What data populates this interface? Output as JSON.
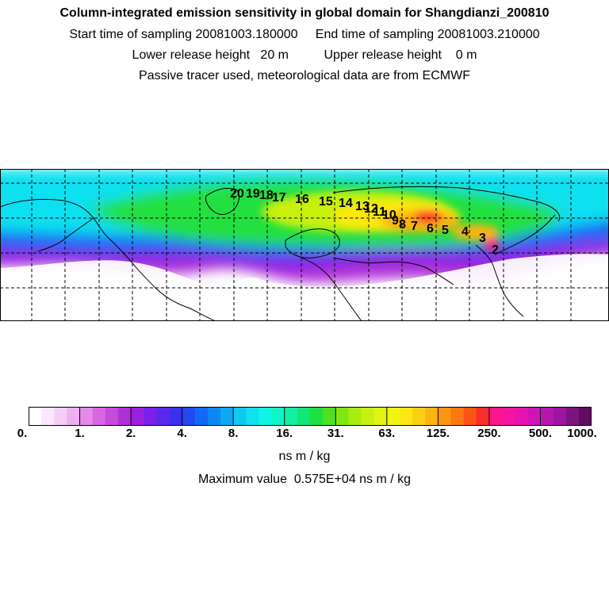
{
  "header": {
    "title": "Column-integrated emission sensitivity in global domain for Shangdianzi_200810",
    "line2": "Start time of sampling 20081003.180000     End time of sampling 20081003.210000",
    "line3": "Lower release height   20 m          Upper release height    0 m",
    "line4": "Passive tracer used, meteorological data are from ECMWF"
  },
  "colorbar": {
    "tick_labels": [
      "0.",
      "1.",
      "2.",
      "4.",
      "8.",
      "16.",
      "31.",
      "63.",
      "125.",
      "250.",
      "500.",
      "1000."
    ],
    "units": "ns m / kg",
    "colors": [
      "#ffffff",
      "#fbe6fb",
      "#f5cdf5",
      "#eeb0f0",
      "#e48ae8",
      "#d865e2",
      "#c84ad8",
      "#b030d8",
      "#9a20e0",
      "#7a20e8",
      "#5a28ec",
      "#3c30f0",
      "#2448f4",
      "#1468f4",
      "#0c88f4",
      "#0ca8f4",
      "#10c8f0",
      "#10e0f0",
      "#10f4e8",
      "#10f4c8",
      "#10f0a0",
      "#10e878",
      "#20e040",
      "#50e020",
      "#80e810",
      "#a8ec10",
      "#c8f010",
      "#e0f410",
      "#f0f410",
      "#fce810",
      "#fcd010",
      "#fcb410",
      "#fc9410",
      "#fc7810",
      "#fc5414",
      "#fc2c2c",
      "#fc1488",
      "#f414a0",
      "#e414b0",
      "#d014b8",
      "#b814b0",
      "#9c14a0",
      "#7c1480",
      "#600c60"
    ]
  },
  "max_value": "Maximum value  0.575E+04 ns m / kg",
  "trajectory_labels": [
    "2",
    "3",
    "4",
    "5",
    "6",
    "7",
    "8",
    "9",
    "10",
    "11",
    "12",
    "13",
    "14",
    "15",
    "16",
    "17",
    "18",
    "19",
    "20"
  ]
}
